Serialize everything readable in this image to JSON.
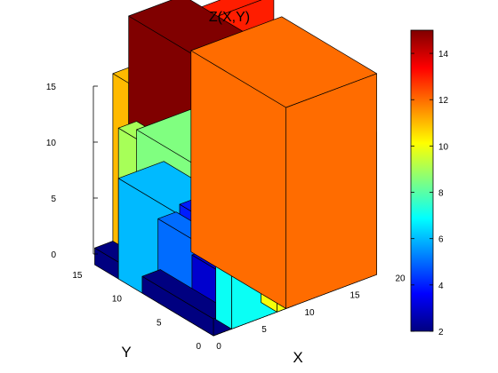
{
  "chart_data": {
    "type": "bar3d",
    "title": "Z(X,Y)",
    "xlabel": "X",
    "ylabel": "Y",
    "zlabel": "",
    "xlim": [
      0,
      20
    ],
    "ylim": [
      0,
      15
    ],
    "zlim": [
      0,
      15
    ],
    "x_ticks": [
      "0",
      "5",
      "10",
      "15",
      "20"
    ],
    "y_ticks": [
      "0",
      "5",
      "10",
      "15"
    ],
    "z_ticks": [
      "0",
      "5",
      "10",
      "15"
    ],
    "colormap": "jet",
    "colorbar": {
      "min": 2,
      "max": 15,
      "ticks": [
        "2",
        "4",
        "6",
        "8",
        "10",
        "12",
        "14"
      ]
    },
    "blocks": [
      {
        "x": [
          8,
          18
        ],
        "y": [
          13,
          15
        ],
        "z": 13
      },
      {
        "x": [
          2,
          9
        ],
        "y": [
          13,
          15
        ],
        "z": 11
      },
      {
        "x": [
          2,
          8
        ],
        "y": [
          0,
          13
        ],
        "z": 15
      },
      {
        "x": [
          0,
          2
        ],
        "y": [
          0,
          15
        ],
        "z": 1
      },
      {
        "x": [
          0,
          2
        ],
        "y": [
          0,
          12
        ],
        "z": 9
      },
      {
        "x": [
          2,
          18
        ],
        "y": [
          0,
          12
        ],
        "z": 8.5
      },
      {
        "x": [
          2,
          9
        ],
        "y": [
          0,
          12
        ],
        "z": 2
      },
      {
        "x": [
          0,
          5
        ],
        "y": [
          0,
          12
        ],
        "z": 6
      },
      {
        "x": [
          5,
          9
        ],
        "y": [
          0,
          10
        ],
        "z": 4
      },
      {
        "x": [
          0,
          2
        ],
        "y": [
          0,
          7
        ],
        "z": 5
      },
      {
        "x": [
          2,
          9
        ],
        "y": [
          0,
          5
        ],
        "z": 3
      },
      {
        "x": [
          0,
          2
        ],
        "y": [
          0,
          9
        ],
        "z": 1
      },
      {
        "x": [
          2,
          7
        ],
        "y": [
          0,
          2
        ],
        "z": 7
      },
      {
        "x": [
          7,
          9
        ],
        "y": [
          0,
          2
        ],
        "z": 10
      },
      {
        "x": [
          8,
          18
        ],
        "y": [
          0,
          12
        ],
        "z": 12
      }
    ]
  }
}
